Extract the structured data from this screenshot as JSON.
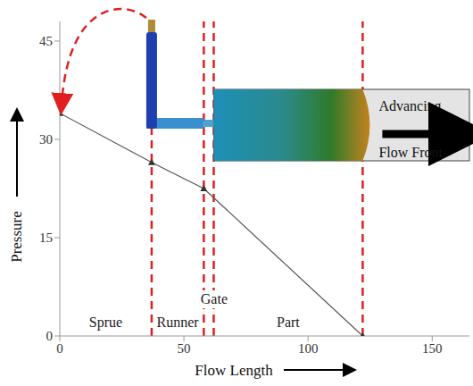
{
  "chart_data": {
    "type": "line",
    "x": [
      0,
      37,
      58,
      122
    ],
    "values": [
      34,
      26.5,
      22.5,
      0
    ],
    "color": "#555555",
    "marker": "triangle",
    "xlim": [
      0,
      165
    ],
    "xticks": [
      0,
      50,
      100,
      150
    ],
    "ylim": [
      0,
      48
    ],
    "yticks": [
      0,
      15,
      30,
      45
    ],
    "x_label": "Flow Length",
    "y_label": "Pressure",
    "grid": false,
    "region_boundaries": [
      37,
      58,
      62,
      122
    ],
    "regions": [
      "Sprue",
      "Runner",
      "Gate",
      "Part"
    ],
    "boundary_color": "#e02020",
    "annotation": "Advancing Flow Front"
  }
}
